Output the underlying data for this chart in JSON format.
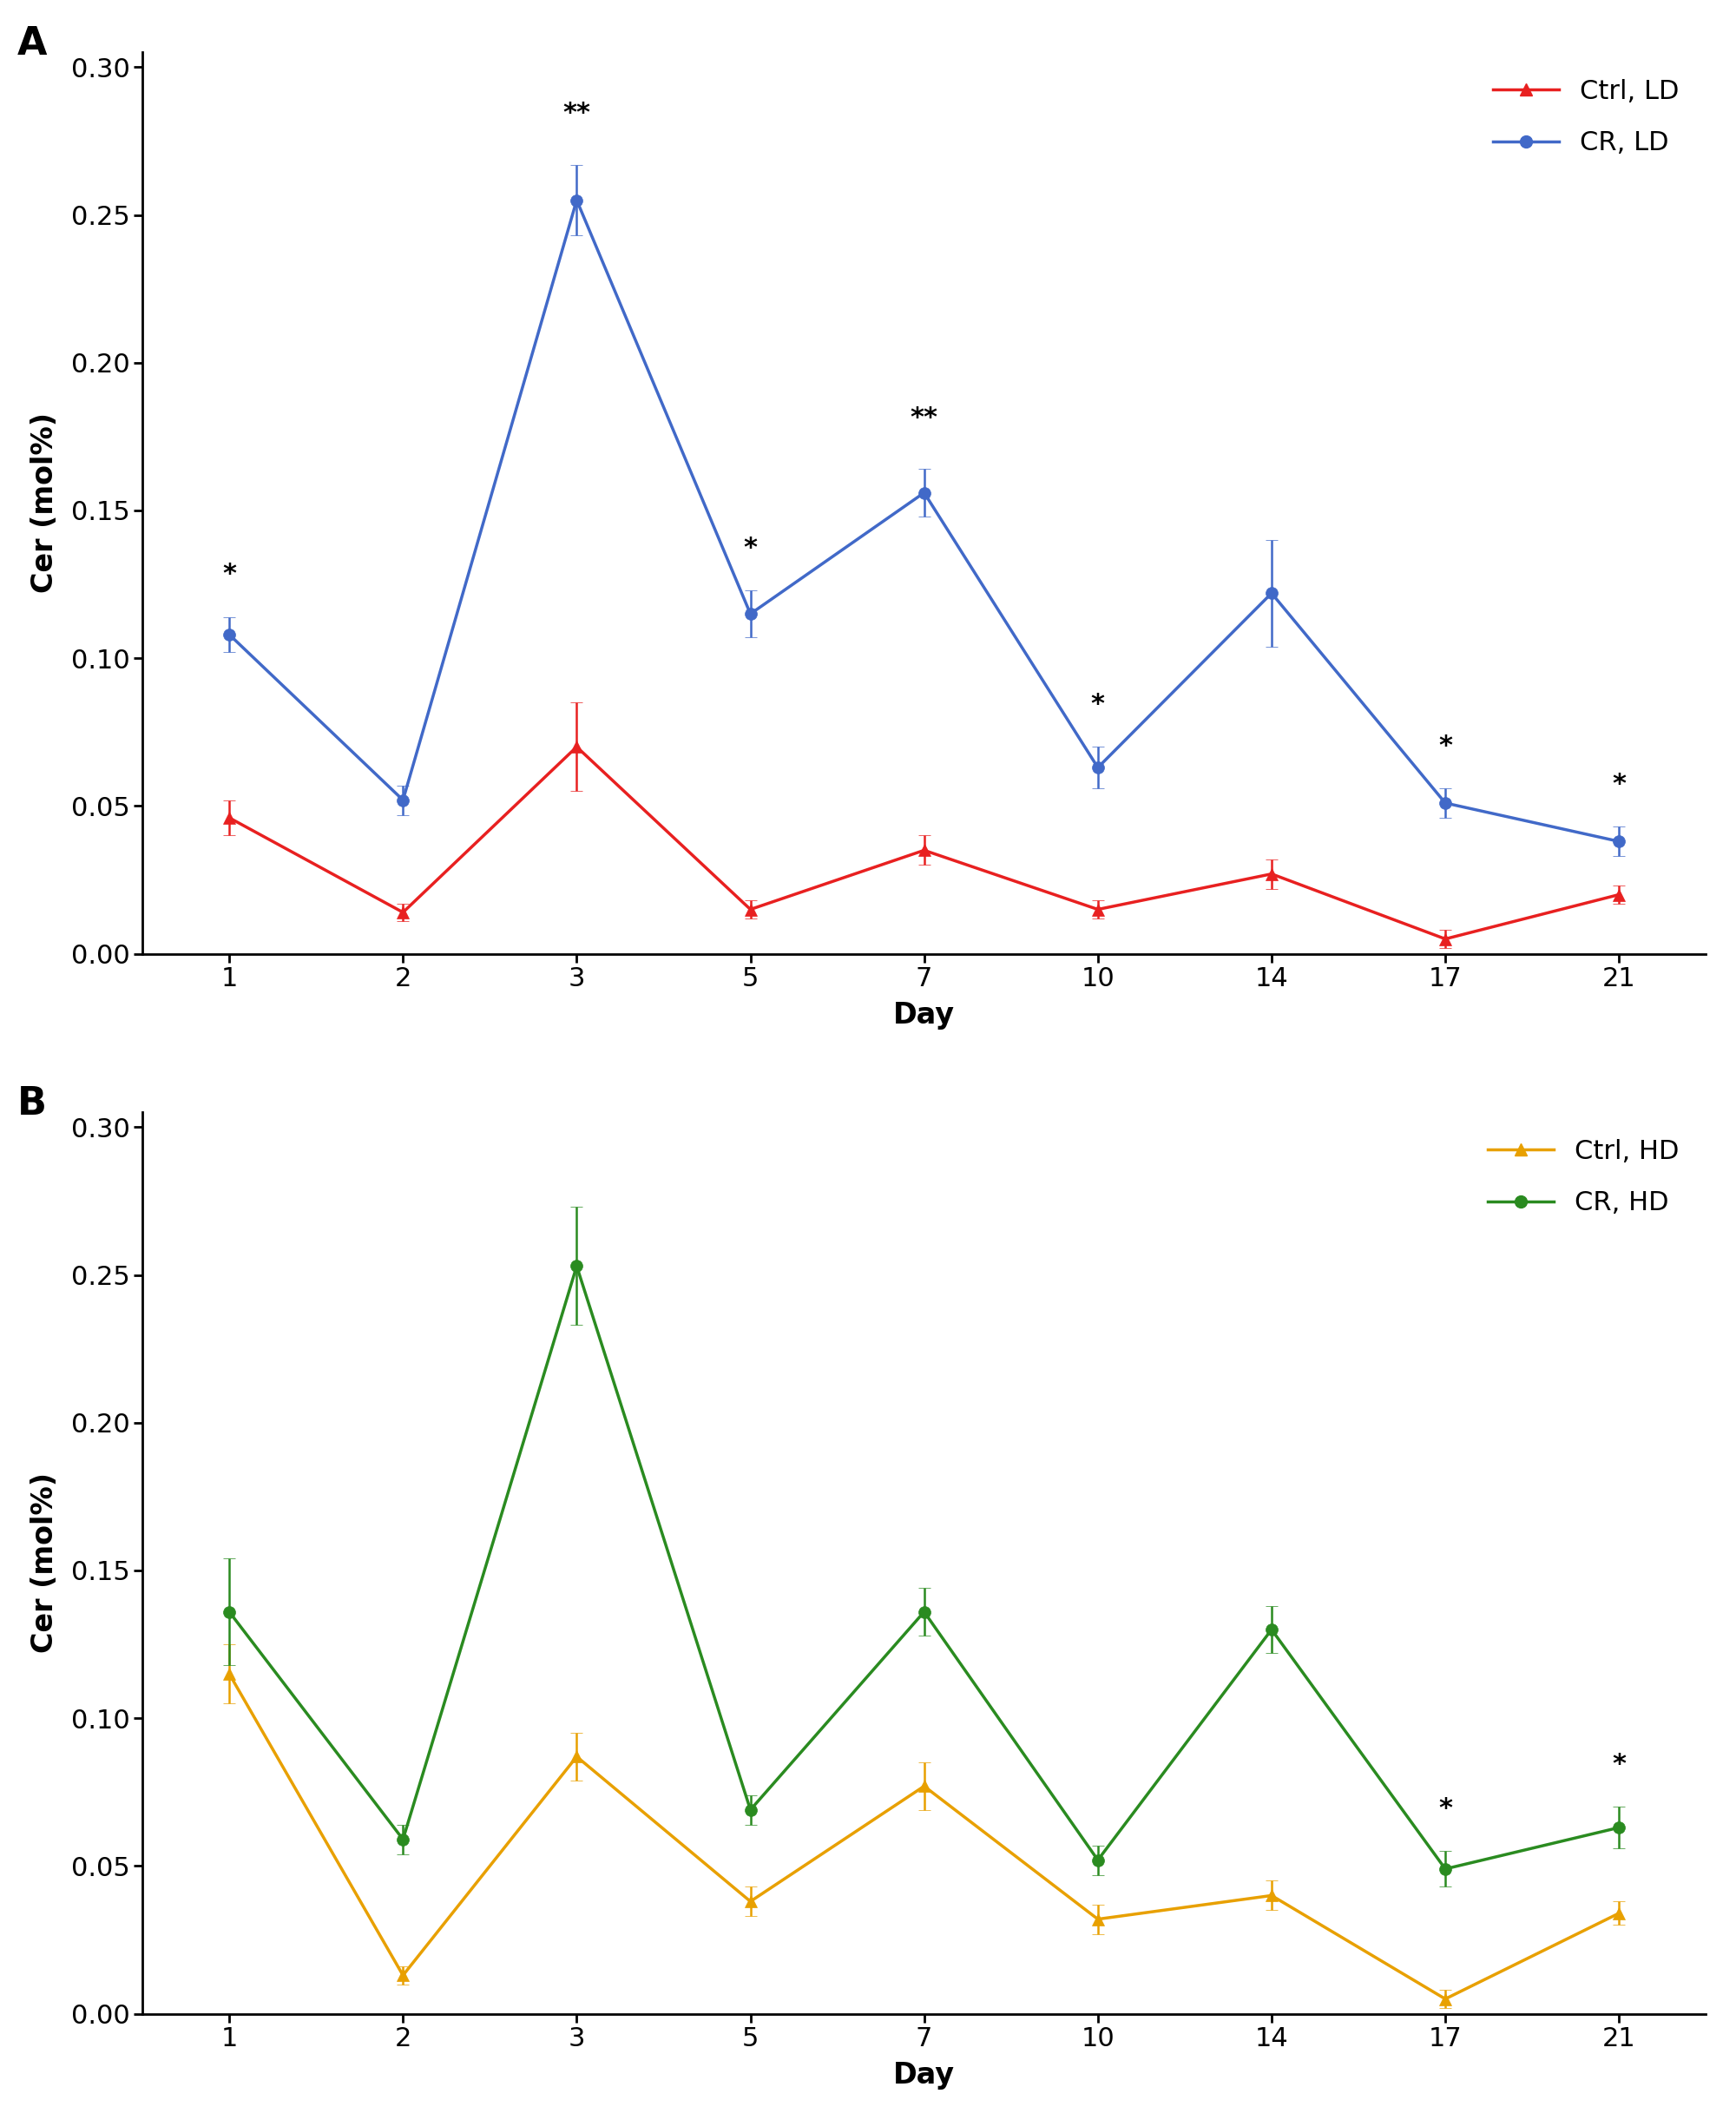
{
  "days": [
    1,
    2,
    3,
    5,
    7,
    10,
    14,
    17,
    21
  ],
  "x_positions": [
    0,
    1,
    2,
    3,
    4,
    5,
    6,
    7,
    8
  ],
  "panel_A": {
    "ctrl_ld_mean": [
      0.046,
      0.014,
      0.07,
      0.015,
      0.035,
      0.015,
      0.027,
      0.005,
      0.02
    ],
    "ctrl_ld_err": [
      0.006,
      0.003,
      0.015,
      0.003,
      0.005,
      0.003,
      0.005,
      0.003,
      0.003
    ],
    "cr_ld_mean": [
      0.108,
      0.052,
      0.255,
      0.115,
      0.156,
      0.063,
      0.122,
      0.051,
      0.038
    ],
    "cr_ld_err": [
      0.006,
      0.005,
      0.012,
      0.008,
      0.008,
      0.007,
      0.018,
      0.005,
      0.005
    ],
    "annot_idx": [
      0,
      2,
      3,
      4,
      5,
      7,
      8
    ],
    "annot_text": [
      "*",
      "**",
      "*",
      "**",
      "*",
      "*",
      "*"
    ],
    "ylabel": "Cer (mol%)",
    "ylim": [
      0.0,
      0.305
    ],
    "yticks": [
      0.0,
      0.05,
      0.1,
      0.15,
      0.2,
      0.25,
      0.3
    ],
    "ytick_labels": [
      "0.00",
      "0.05",
      "0.10",
      "0.15",
      "0.20",
      "0.25",
      "0.30"
    ],
    "legend_labels": [
      "Ctrl, LD",
      "CR, LD"
    ],
    "panel_label": "A"
  },
  "panel_B": {
    "ctrl_hd_mean": [
      0.115,
      0.013,
      0.087,
      0.038,
      0.077,
      0.032,
      0.04,
      0.005,
      0.034
    ],
    "ctrl_hd_err": [
      0.01,
      0.003,
      0.008,
      0.005,
      0.008,
      0.005,
      0.005,
      0.003,
      0.004
    ],
    "cr_hd_mean": [
      0.136,
      0.059,
      0.253,
      0.069,
      0.136,
      0.052,
      0.13,
      0.049,
      0.063
    ],
    "cr_hd_err": [
      0.018,
      0.005,
      0.02,
      0.005,
      0.008,
      0.005,
      0.008,
      0.006,
      0.007
    ],
    "annot_idx": [
      7,
      8
    ],
    "annot_text": [
      "*",
      "*"
    ],
    "ylabel": "Cer (mol%)",
    "ylim": [
      0.0,
      0.305
    ],
    "yticks": [
      0.0,
      0.05,
      0.1,
      0.15,
      0.2,
      0.25,
      0.3
    ],
    "ytick_labels": [
      "0.00",
      "0.05",
      "0.10",
      "0.15",
      "0.20",
      "0.25",
      "0.30"
    ],
    "legend_labels": [
      "Ctrl, HD",
      "CR, HD"
    ],
    "panel_label": "B"
  },
  "xlabel": "Day",
  "ctrl_ld_color": "#e82020",
  "cr_ld_color": "#4169c8",
  "ctrl_hd_color": "#e8a000",
  "cr_hd_color": "#2a8b20",
  "linewidth": 2.5,
  "markersize": 10,
  "capsize": 5,
  "elinewidth": 1.8,
  "annot_fontsize": 22,
  "label_fontsize": 24,
  "tick_fontsize": 22,
  "panel_label_fontsize": 32,
  "legend_fontsize": 22
}
